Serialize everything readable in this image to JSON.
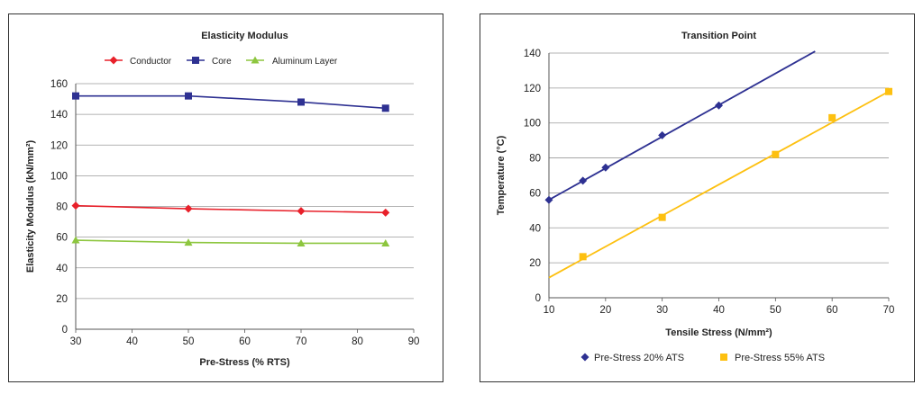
{
  "chart_data": [
    {
      "type": "line",
      "title": "Elasticity Modulus",
      "xlabel": "Pre-Stress (% RTS)",
      "ylabel": "Elasticity Modulus (kN/mm²)",
      "xlim": [
        30,
        90
      ],
      "ylim": [
        0,
        160
      ],
      "xticks": [
        "30",
        "40",
        "50",
        "60",
        "70",
        "80",
        "90"
      ],
      "yticks": [
        "0",
        "20",
        "40",
        "60",
        "80",
        "100",
        "120",
        "140",
        "160"
      ],
      "grid": "horizontal",
      "legend_position": "top",
      "series": [
        {
          "name": "Conductor",
          "color": "#e8202a",
          "marker": "diamond",
          "x": [
            30,
            50,
            70,
            85
          ],
          "y": [
            80.5,
            78.5,
            77,
            76
          ]
        },
        {
          "name": "Core",
          "color": "#2e3192",
          "marker": "square",
          "x": [
            30,
            50,
            70,
            85
          ],
          "y": [
            152,
            152,
            148,
            144
          ]
        },
        {
          "name": "Aluminum Layer",
          "color": "#8dc63f",
          "marker": "triangle",
          "x": [
            30,
            50,
            70,
            85
          ],
          "y": [
            58,
            56.5,
            56,
            56
          ]
        }
      ]
    },
    {
      "type": "scatter",
      "title": "Transition Point",
      "xlabel": "Tensile Stress (N/mm²)",
      "ylabel": "Temperature (°C)",
      "xlim": [
        10,
        70
      ],
      "ylim": [
        0,
        140
      ],
      "xticks": [
        "10",
        "20",
        "30",
        "40",
        "50",
        "60",
        "70"
      ],
      "yticks": [
        "0",
        "20",
        "40",
        "60",
        "80",
        "100",
        "120",
        "140"
      ],
      "grid": "horizontal",
      "legend_position": "bottom",
      "series": [
        {
          "name": "Pre-Stress 20% ATS",
          "color": "#2e3192",
          "marker": "diamond",
          "x": [
            10,
            16,
            20,
            30,
            40
          ],
          "y": [
            56,
            67,
            74.5,
            93,
            110
          ],
          "trendline": {
            "x": [
              10,
              57
            ],
            "y": [
              56,
              141
            ]
          }
        },
        {
          "name": "Pre-Stress 55% ATS",
          "color": "#fdc010",
          "marker": "square",
          "x": [
            16,
            30,
            50,
            60,
            70
          ],
          "y": [
            23.5,
            46,
            82,
            103,
            118
          ],
          "trendline": {
            "x": [
              10,
              70
            ],
            "y": [
              11.5,
              118
            ]
          }
        }
      ]
    }
  ]
}
